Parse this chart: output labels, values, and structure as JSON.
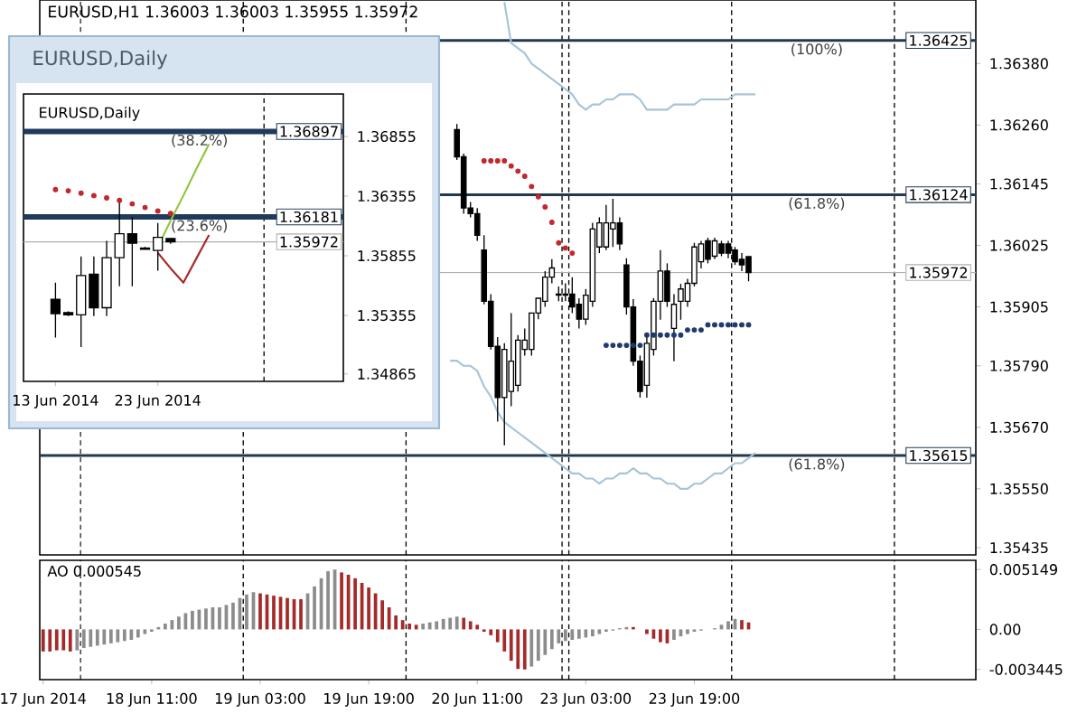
{
  "chart_data": [
    {
      "type": "candlestick",
      "title": "EURUSD,H1 1.36003 1.36003 1.35955 1.35972",
      "categories": [
        null,
        null,
        null,
        null,
        null,
        null,
        null,
        null,
        null,
        null,
        null,
        null,
        null,
        null,
        null,
        null,
        null,
        null,
        null,
        null,
        null,
        null,
        null,
        null,
        null,
        null,
        null,
        null,
        null,
        null,
        null,
        null,
        null,
        null,
        null,
        null,
        null,
        null,
        null,
        null,
        null,
        null,
        null,
        null,
        null,
        null,
        null,
        null,
        null,
        null,
        null,
        null,
        null,
        null,
        null,
        null,
        null,
        null,
        null,
        null,
        null,
        null,
        null,
        null,
        null,
        null,
        null,
        null,
        null,
        null,
        null,
        null,
        null,
        null,
        null,
        null,
        null,
        null,
        null,
        null,
        null,
        null,
        null,
        null,
        null,
        null,
        null,
        null,
        null,
        null,
        null,
        null,
        null,
        null,
        null,
        null,
        null,
        null,
        null,
        null,
        null,
        null,
        null,
        null,
        null,
        null,
        null,
        null,
        null,
        null,
        null,
        null,
        null,
        null,
        null,
        null,
        null,
        null,
        null,
        null,
        null,
        null,
        null,
        null,
        null,
        null,
        null,
        null,
        null,
        null,
        null,
        null,
        null,
        null,
        null,
        null,
        null,
        null
      ],
      "ohlc": [
        null,
        null,
        null,
        null,
        null,
        null,
        null,
        null,
        null,
        null,
        null,
        null,
        null,
        null,
        null,
        null,
        null,
        null,
        null,
        null,
        null,
        null,
        null,
        null,
        null,
        null,
        null,
        null,
        null,
        null,
        null,
        null,
        null,
        null,
        null,
        null,
        null,
        null,
        null,
        null,
        null,
        null,
        null,
        null,
        null,
        null,
        null,
        null,
        null,
        null,
        null,
        null,
        null,
        null,
        null,
        null,
        null,
        null,
        null,
        null,
        null,
        [
          1.36251,
          1.36262,
          1.36192,
          1.36198
        ],
        [
          1.36198,
          1.36204,
          1.36087,
          1.36098
        ],
        [
          1.36098,
          1.3611,
          1.3608,
          1.36087
        ],
        [
          1.36087,
          1.36098,
          1.36034,
          1.36045
        ],
        [
          1.36016,
          1.36045,
          1.3591,
          1.35916
        ],
        [
          1.35916,
          1.3593,
          1.35822,
          1.35828
        ],
        [
          1.35828,
          1.35846,
          1.35681,
          1.35728
        ],
        [
          1.35728,
          1.35834,
          1.35635,
          1.35822
        ],
        [
          1.3574,
          1.35893,
          1.35711,
          1.35799
        ],
        [
          1.35752,
          1.3585,
          1.3574,
          1.3584
        ],
        [
          1.35822,
          1.35863,
          1.3581,
          1.3584
        ],
        [
          1.35822,
          1.35893,
          1.3581,
          1.35893
        ],
        [
          1.35893,
          1.35922,
          1.35881,
          1.35922
        ],
        [
          1.35916,
          1.35975,
          1.35905,
          1.35963
        ],
        [
          1.35963,
          1.35998,
          1.35951,
          1.35981
        ],
        [
          1.35928,
          1.35945,
          1.35916,
          1.3593
        ],
        [
          1.3593,
          1.35951,
          1.35916,
          1.35928
        ],
        [
          1.3593,
          1.35963,
          1.35893,
          1.35905
        ],
        [
          1.3591,
          1.35922,
          1.35863,
          1.35881
        ],
        [
          1.35881,
          1.3594,
          1.3587,
          1.35928
        ],
        [
          1.35916,
          1.36069,
          1.35905,
          1.36057
        ],
        [
          1.36022,
          1.3608,
          1.3601,
          1.36069
        ],
        [
          1.36022,
          1.36104,
          1.36016,
          1.36069
        ],
        [
          1.36057,
          1.36116,
          1.36022,
          1.36069
        ],
        [
          1.36069,
          1.3608,
          1.36016,
          1.36028
        ],
        [
          1.35987,
          1.36,
          1.3589,
          1.35905
        ],
        [
          1.35905,
          1.3592,
          1.3579,
          1.35799
        ],
        [
          1.35799,
          1.3581,
          1.35728,
          1.3574
        ],
        [
          1.35752,
          1.3585,
          1.35728,
          1.35834
        ],
        [
          1.35822,
          1.35922,
          1.3581,
          1.35916
        ],
        [
          1.35916,
          1.36016,
          1.3588,
          1.35975
        ],
        [
          1.35975,
          1.3599,
          1.35905,
          1.35916
        ],
        [
          1.35863,
          1.3593,
          1.35799,
          1.3591
        ],
        [
          1.35916,
          1.3595,
          1.3588,
          1.3594
        ],
        [
          1.35916,
          1.3596,
          1.35905,
          1.35951
        ],
        [
          1.35951,
          1.3603,
          1.35945,
          1.36022
        ],
        [
          1.35993,
          1.36034,
          1.3598,
          1.36028
        ],
        [
          1.36034,
          1.3604,
          1.3599,
          1.35998
        ],
        [
          1.36004,
          1.3604,
          1.35998,
          1.36034
        ],
        [
          1.36028,
          1.36034,
          1.36004,
          1.3601
        ],
        [
          1.36028,
          1.36034,
          1.36,
          1.3601
        ],
        [
          1.36016,
          1.36022,
          1.35987,
          1.35993
        ],
        [
          1.35998,
          1.3601,
          1.35975,
          1.35987
        ],
        [
          1.36003,
          1.36003,
          1.35955,
          1.35972
        ],
        null,
        null,
        null,
        null,
        null,
        null,
        null,
        null,
        null,
        null,
        null,
        null,
        null,
        null,
        null,
        null,
        null,
        null,
        null,
        null,
        null,
        null,
        null,
        null,
        null,
        null,
        null,
        null,
        null,
        null,
        null,
        null,
        null
      ],
      "series": [
        {
          "type": "scatter",
          "color": "#c0282d",
          "marker": "circle",
          "values": [
            null,
            null,
            null,
            null,
            null,
            null,
            null,
            null,
            null,
            null,
            null,
            null,
            null,
            null,
            null,
            null,
            null,
            null,
            null,
            null,
            null,
            null,
            null,
            null,
            null,
            null,
            null,
            null,
            null,
            null,
            null,
            null,
            null,
            null,
            null,
            null,
            null,
            null,
            null,
            null,
            null,
            null,
            null,
            null,
            null,
            null,
            null,
            null,
            null,
            null,
            null,
            null,
            null,
            null,
            null,
            null,
            null,
            null,
            null,
            null,
            null,
            null,
            null,
            null,
            null,
            1.3619,
            1.3619,
            1.3619,
            1.3619,
            1.3618,
            1.3617,
            1.3616,
            1.3614,
            1.3612,
            1.361,
            1.3607,
            1.3603,
            1.3602,
            1.3601,
            null,
            null,
            null,
            null,
            null,
            null,
            null,
            null,
            null,
            null,
            null,
            null,
            null,
            null,
            null,
            null,
            null,
            null,
            null,
            null,
            null,
            null,
            null,
            null,
            null,
            null,
            null,
            null,
            null,
            null,
            null,
            null,
            null,
            null,
            null,
            null,
            null,
            null,
            null,
            null,
            null,
            null,
            null,
            null,
            null,
            null,
            null,
            null,
            null,
            null,
            null,
            null,
            null,
            null,
            null,
            null,
            null,
            null,
            null
          ]
        },
        {
          "type": "scatter",
          "color": "#1f3a6b",
          "marker": "circle",
          "values": [
            null,
            null,
            null,
            null,
            null,
            null,
            null,
            null,
            null,
            null,
            null,
            null,
            null,
            null,
            null,
            null,
            null,
            null,
            null,
            null,
            null,
            null,
            null,
            null,
            null,
            null,
            null,
            null,
            null,
            null,
            null,
            null,
            null,
            null,
            null,
            null,
            null,
            null,
            null,
            null,
            null,
            null,
            null,
            null,
            null,
            null,
            null,
            null,
            null,
            null,
            null,
            null,
            null,
            null,
            null,
            null,
            null,
            null,
            null,
            null,
            null,
            null,
            null,
            null,
            null,
            null,
            null,
            null,
            null,
            null,
            null,
            null,
            null,
            null,
            null,
            null,
            null,
            null,
            null,
            null,
            null,
            null,
            null,
            1.3583,
            1.3583,
            1.3583,
            1.3583,
            1.3583,
            1.3583,
            1.3585,
            1.3585,
            1.3585,
            1.3585,
            1.3585,
            1.3585,
            1.3586,
            1.3586,
            1.3586,
            1.3587,
            1.3587,
            1.3587,
            1.3587,
            1.3587,
            1.3587,
            1.3587,
            null,
            null,
            null,
            null,
            null,
            null,
            null,
            null,
            null,
            null,
            null,
            null,
            null,
            null,
            null,
            null,
            null,
            null,
            null,
            null,
            null,
            null,
            null,
            null,
            null,
            null,
            null,
            null,
            null,
            null,
            null,
            null,
            null
          ]
        },
        {
          "type": "line",
          "color": "#a7c4d6",
          "values": [
            null,
            null,
            null,
            null,
            null,
            null,
            null,
            null,
            null,
            null,
            null,
            null,
            null,
            null,
            null,
            null,
            null,
            null,
            null,
            null,
            null,
            null,
            null,
            null,
            null,
            null,
            null,
            null,
            null,
            null,
            null,
            null,
            null,
            null,
            null,
            null,
            null,
            null,
            null,
            null,
            null,
            null,
            null,
            null,
            null,
            null,
            null,
            null,
            null,
            null,
            null,
            null,
            null,
            null,
            null,
            null,
            null,
            null,
            null,
            null,
            null,
            null,
            null,
            null,
            null,
            null,
            null,
            null,
            1.365,
            1.3642,
            1.3641,
            1.364,
            1.3638,
            1.3637,
            1.3636,
            1.3635,
            1.3634,
            1.3633,
            1.3632,
            1.363,
            1.3629,
            1.363,
            1.363,
            1.3631,
            1.3631,
            1.3632,
            1.3632,
            1.3632,
            1.3631,
            1.3629,
            1.3629,
            1.3629,
            1.3629,
            1.363,
            1.363,
            1.363,
            1.363,
            1.3631,
            1.3631,
            1.3631,
            1.3631,
            1.3631,
            1.3632,
            1.3632,
            1.3632,
            1.3632,
            null,
            null,
            null,
            null,
            null,
            null,
            null,
            null,
            null,
            null,
            null,
            null,
            null,
            null,
            null,
            null,
            null,
            null,
            null,
            null,
            null,
            null,
            null,
            null,
            null,
            null,
            null,
            null,
            null,
            null,
            null,
            null
          ]
        },
        {
          "type": "line",
          "color": "#a7c4d6",
          "values": [
            null,
            null,
            null,
            null,
            null,
            null,
            null,
            null,
            null,
            null,
            null,
            null,
            null,
            null,
            null,
            null,
            null,
            null,
            null,
            null,
            null,
            null,
            null,
            null,
            null,
            null,
            null,
            null,
            null,
            null,
            null,
            null,
            null,
            null,
            null,
            null,
            null,
            null,
            null,
            null,
            null,
            null,
            null,
            null,
            null,
            null,
            null,
            null,
            null,
            null,
            null,
            null,
            null,
            null,
            null,
            null,
            null,
            null,
            null,
            null,
            1.358,
            1.358,
            1.3579,
            1.3579,
            1.3578,
            1.3575,
            1.3573,
            1.357,
            1.3568,
            1.3567,
            1.3566,
            1.3565,
            1.3564,
            1.3563,
            1.3562,
            1.3561,
            1.356,
            1.3559,
            1.3558,
            1.3558,
            1.3557,
            1.3557,
            1.3556,
            1.3557,
            1.3557,
            1.3558,
            1.3558,
            1.3559,
            1.3558,
            1.3558,
            1.3557,
            1.3557,
            1.3556,
            1.3556,
            1.3555,
            1.3555,
            1.3556,
            1.3556,
            1.3557,
            1.3558,
            1.3558,
            1.3559,
            1.356,
            1.356,
            1.3561,
            1.3562,
            null,
            null,
            null,
            null,
            null,
            null,
            null,
            null,
            null,
            null,
            null,
            null,
            null,
            null,
            null,
            null,
            null,
            null,
            null,
            null,
            null,
            null,
            null,
            null,
            null,
            null,
            null,
            null,
            null,
            null,
            null,
            null
          ]
        }
      ],
      "ylim": [
        1.35421,
        1.36504
      ],
      "yticks": [
        {
          "value": 1.3638,
          "label": "1.36380"
        },
        {
          "value": 1.3626,
          "label": "1.36260"
        },
        1.36145,
        1.36025,
        1.35905,
        {
          "value": 1.3579,
          "label": "1.35790"
        },
        {
          "value": 1.3567,
          "label": "1.35670"
        },
        {
          "value": 1.3555,
          "label": "1.35550"
        },
        1.35435
      ],
      "tick_labels": "y",
      "ref_lines": [
        {
          "axis": "y",
          "value": 1.36425,
          "label": "1.36425",
          "color": "#22384f",
          "line_style": "solid"
        },
        {
          "axis": "y",
          "value": 1.36124,
          "label": "1.36124",
          "color": "#22384f",
          "line_style": "solid"
        },
        {
          "axis": "y",
          "value": 1.35615,
          "label": "1.35615",
          "color": "#22384f",
          "line_style": "solid"
        },
        {
          "axis": "y",
          "value": 1.35972,
          "label": "1.35972",
          "color": "#b0b0b0",
          "line_style": "solid"
        }
      ],
      "annotations": [
        {
          "text": "(100%)",
          "y": 1.36425
        },
        {
          "text": "(61.8%)",
          "y": 1.36124
        },
        {
          "text": "(61.8%)",
          "y": 1.35615
        }
      ]
    },
    {
      "type": "bar",
      "categories": [
        "17 Jun 2014",
        null,
        null,
        null,
        null,
        null,
        null,
        null,
        null,
        null,
        null,
        null,
        null,
        null,
        null,
        null,
        "18 Jun 11:00",
        null,
        null,
        null,
        null,
        null,
        null,
        null,
        null,
        null,
        null,
        null,
        null,
        null,
        null,
        null,
        "19 Jun 03:00",
        null,
        null,
        null,
        null,
        null,
        null,
        null,
        null,
        null,
        null,
        null,
        null,
        null,
        null,
        null,
        "19 Jun 19:00",
        null,
        null,
        null,
        null,
        null,
        null,
        null,
        null,
        null,
        null,
        null,
        null,
        null,
        null,
        null,
        "20 Jun 11:00",
        null,
        null,
        null,
        null,
        null,
        null,
        null,
        null,
        null,
        null,
        null,
        null,
        null,
        null,
        null,
        "23 Jun 03:00",
        null,
        null,
        null,
        null,
        null,
        null,
        null,
        null,
        null,
        null,
        null,
        null,
        null,
        null,
        null,
        "23 Jun 19:00",
        null,
        null,
        null,
        null,
        null,
        null,
        null,
        null,
        null,
        null,
        null,
        null,
        null,
        null,
        null,
        null,
        null,
        null,
        null,
        null,
        null,
        null,
        null,
        null,
        null,
        null,
        null,
        null,
        null,
        null,
        null,
        null,
        null,
        null,
        null,
        null,
        null,
        null,
        null,
        null,
        null
      ],
      "values": [
        -0.0019,
        -0.0019,
        -0.0018,
        -0.0018,
        -0.0019,
        -0.0018,
        -0.0016,
        -0.0015,
        -0.0014,
        -0.0013,
        -0.0012,
        -0.0011,
        -0.001,
        -0.0009,
        -0.0007,
        -0.0004,
        -0.0002,
        0.0002,
        0.0005,
        0.0008,
        0.0011,
        0.0014,
        0.0016,
        0.0017,
        0.0018,
        0.0019,
        0.0019,
        0.0021,
        0.0023,
        0.0027,
        0.003,
        0.0032,
        0.0031,
        0.003,
        0.0029,
        0.0028,
        0.0027,
        0.0026,
        0.0026,
        0.0031,
        0.0037,
        0.0044,
        0.005,
        0.005149,
        0.0049,
        0.0047,
        0.0044,
        0.004,
        0.0036,
        0.0031,
        0.0025,
        0.0019,
        0.0012,
        0.0008,
        0.0005,
        0.0004,
        0.0005,
        0.0006,
        0.0007,
        0.0009,
        0.001,
        0.0011,
        0.001,
        0.0007,
        0.0004,
        -0.0002,
        -0.0005,
        -0.0011,
        -0.0019,
        -0.0027,
        -0.0034,
        -0.003445,
        -0.0032,
        -0.0027,
        -0.0022,
        -0.0017,
        -0.0012,
        -0.001,
        -0.0009,
        -0.0008,
        -0.0007,
        -0.0006,
        -0.0004,
        -0.0002,
        -0.0001,
        0.0001,
        0.0002,
        0.0002,
        0,
        -0.0004,
        -0.0008,
        -0.0011,
        -0.0012,
        -0.0009,
        -0.0006,
        -0.0004,
        -0.0002,
        -0.0001,
        0,
        0.0001,
        0.0004,
        0.0007,
        0.0009,
        0.0008,
        0.0006,
        null,
        null,
        null,
        null,
        null,
        null,
        null,
        null,
        null,
        null,
        null,
        null,
        null,
        null,
        null,
        null,
        null,
        null,
        null,
        null,
        null,
        null,
        null,
        null,
        null,
        null,
        null,
        null,
        null,
        null,
        null,
        null,
        null
      ],
      "colors": [
        "#a52a2a",
        "#a52a2a",
        "#a52a2a",
        "#a52a2a",
        "#a52a2a",
        "#8c8c8c",
        "#8c8c8c",
        "#8c8c8c",
        "#8c8c8c",
        "#8c8c8c",
        "#8c8c8c",
        "#8c8c8c",
        "#8c8c8c",
        "#8c8c8c",
        "#8c8c8c",
        "#8c8c8c",
        "#8c8c8c",
        "#8c8c8c",
        "#8c8c8c",
        "#8c8c8c",
        "#8c8c8c",
        "#8c8c8c",
        "#8c8c8c",
        "#8c8c8c",
        "#8c8c8c",
        "#8c8c8c",
        "#8c8c8c",
        "#8c8c8c",
        "#8c8c8c",
        "#8c8c8c",
        "#8c8c8c",
        "#8c8c8c",
        "#a52a2a",
        "#a52a2a",
        "#a52a2a",
        "#a52a2a",
        "#a52a2a",
        "#a52a2a",
        "#a52a2a",
        "#8c8c8c",
        "#8c8c8c",
        "#8c8c8c",
        "#8c8c8c",
        "#8c8c8c",
        "#a52a2a",
        "#a52a2a",
        "#a52a2a",
        "#a52a2a",
        "#a52a2a",
        "#a52a2a",
        "#a52a2a",
        "#a52a2a",
        "#a52a2a",
        "#a52a2a",
        "#a52a2a",
        "#a52a2a",
        "#8c8c8c",
        "#8c8c8c",
        "#8c8c8c",
        "#8c8c8c",
        "#8c8c8c",
        "#8c8c8c",
        "#a52a2a",
        "#a52a2a",
        "#a52a2a",
        "#a52a2a",
        "#a52a2a",
        "#a52a2a",
        "#a52a2a",
        "#a52a2a",
        "#a52a2a",
        "#a52a2a",
        "#8c8c8c",
        "#8c8c8c",
        "#8c8c8c",
        "#8c8c8c",
        "#8c8c8c",
        "#8c8c8c",
        "#8c8c8c",
        "#8c8c8c",
        "#8c8c8c",
        "#8c8c8c",
        "#8c8c8c",
        "#8c8c8c",
        "#8c8c8c",
        "#8c8c8c",
        "#8c8c8c",
        "#a52a2a",
        "#a52a2a",
        "#a52a2a",
        "#a52a2a",
        "#a52a2a",
        "#a52a2a",
        "#8c8c8c",
        "#8c8c8c",
        "#8c8c8c",
        "#8c8c8c",
        "#8c8c8c",
        "#8c8c8c",
        "#8c8c8c",
        "#8c8c8c",
        "#8c8c8c",
        "#8c8c8c",
        "#a52a2a",
        "#a52a2a",
        null,
        null,
        null,
        null,
        null,
        null,
        null,
        null,
        null,
        null,
        null,
        null,
        null,
        null,
        null,
        null,
        null,
        null,
        null,
        null,
        null,
        null,
        null,
        null,
        null,
        null,
        null,
        null,
        null,
        null,
        null,
        null,
        null
      ],
      "ylim": [
        -0.00432,
        0.00594
      ],
      "yticks": [
        0.005149,
        {
          "value": 0,
          "label": "0.00"
        },
        -0.003445
      ],
      "annotations": [
        "AO 0.000545"
      ]
    },
    {
      "type": "candlestick",
      "title": "EURUSD,Daily",
      "subtitle": "EURUSD,Daily",
      "categories": [
        "13 Jun 2014",
        null,
        null,
        null,
        null,
        null,
        null,
        null,
        "23 Jun 2014",
        null,
        null,
        null,
        null,
        null,
        null,
        null,
        null,
        null,
        null,
        null,
        null,
        null,
        null
      ],
      "ohlc": [
        [
          1.3549,
          1.3563,
          1.3517,
          1.3537
        ],
        [
          1.3538,
          1.3539,
          1.3535,
          1.3536
        ],
        [
          1.3536,
          1.3585,
          1.3509,
          1.3569
        ],
        [
          1.357,
          1.3585,
          1.3535,
          1.3542
        ],
        [
          1.3542,
          1.3598,
          1.3535,
          1.3584
        ],
        [
          1.3584,
          1.3634,
          1.356,
          1.3604
        ],
        [
          1.3604,
          1.3618,
          1.356,
          1.3596
        ],
        [
          1.3592,
          1.3593,
          1.3591,
          1.3591
        ],
        [
          1.359,
          1.3613,
          1.3573,
          1.3601
        ],
        [
          1.36,
          1.36003,
          1.35955,
          1.35972
        ],
        null,
        null,
        null,
        null,
        null,
        null,
        null,
        null,
        null,
        null,
        null,
        null,
        null
      ],
      "series": [
        {
          "type": "scatter",
          "color": "#c0282d",
          "marker": "circle",
          "values": [
            1.3641,
            1.364,
            1.3638,
            1.3636,
            1.3634,
            1.3632,
            1.3629,
            1.3626,
            1.3623,
            1.3621,
            null,
            null,
            null,
            null,
            null,
            null,
            null,
            null,
            null,
            null,
            null,
            null,
            null
          ]
        },
        {
          "type": "line",
          "color": "#8dc63f",
          "values": [
            null,
            null,
            null,
            null,
            null,
            null,
            null,
            null,
            1.3593,
            1.3615,
            1.3636,
            1.3658,
            1.3679,
            null,
            null,
            null,
            null,
            null,
            null,
            null,
            null,
            null,
            null
          ]
        },
        {
          "type": "line",
          "color": "#a52a2a",
          "values": [
            null,
            null,
            null,
            null,
            null,
            null,
            null,
            null,
            1.3588,
            1.3575,
            1.3563,
            1.3583,
            1.3603,
            null,
            null,
            null,
            null,
            null,
            null,
            null,
            null,
            null,
            null
          ]
        }
      ],
      "ylim": [
        1.34803,
        1.37211
      ],
      "yticks": [
        1.36855,
        1.36355,
        1.35855,
        1.35355,
        1.34865
      ],
      "ref_lines": [
        {
          "axis": "y",
          "value": 1.36897,
          "label": "1.36897",
          "color": "#1f3a5a",
          "line_style": "solid"
        },
        {
          "axis": "y",
          "value": 1.36181,
          "label": "1.36181",
          "color": "#1f3a5a",
          "line_style": "solid"
        },
        {
          "axis": "y",
          "value": 1.35972,
          "label": "1.35972",
          "color": "#b0b0b0",
          "line_style": "solid"
        }
      ],
      "annotations": [
        {
          "text": "(38.2%)",
          "y": 1.36897
        },
        {
          "text": "(23.6%)",
          "y": 1.36181
        }
      ]
    }
  ]
}
